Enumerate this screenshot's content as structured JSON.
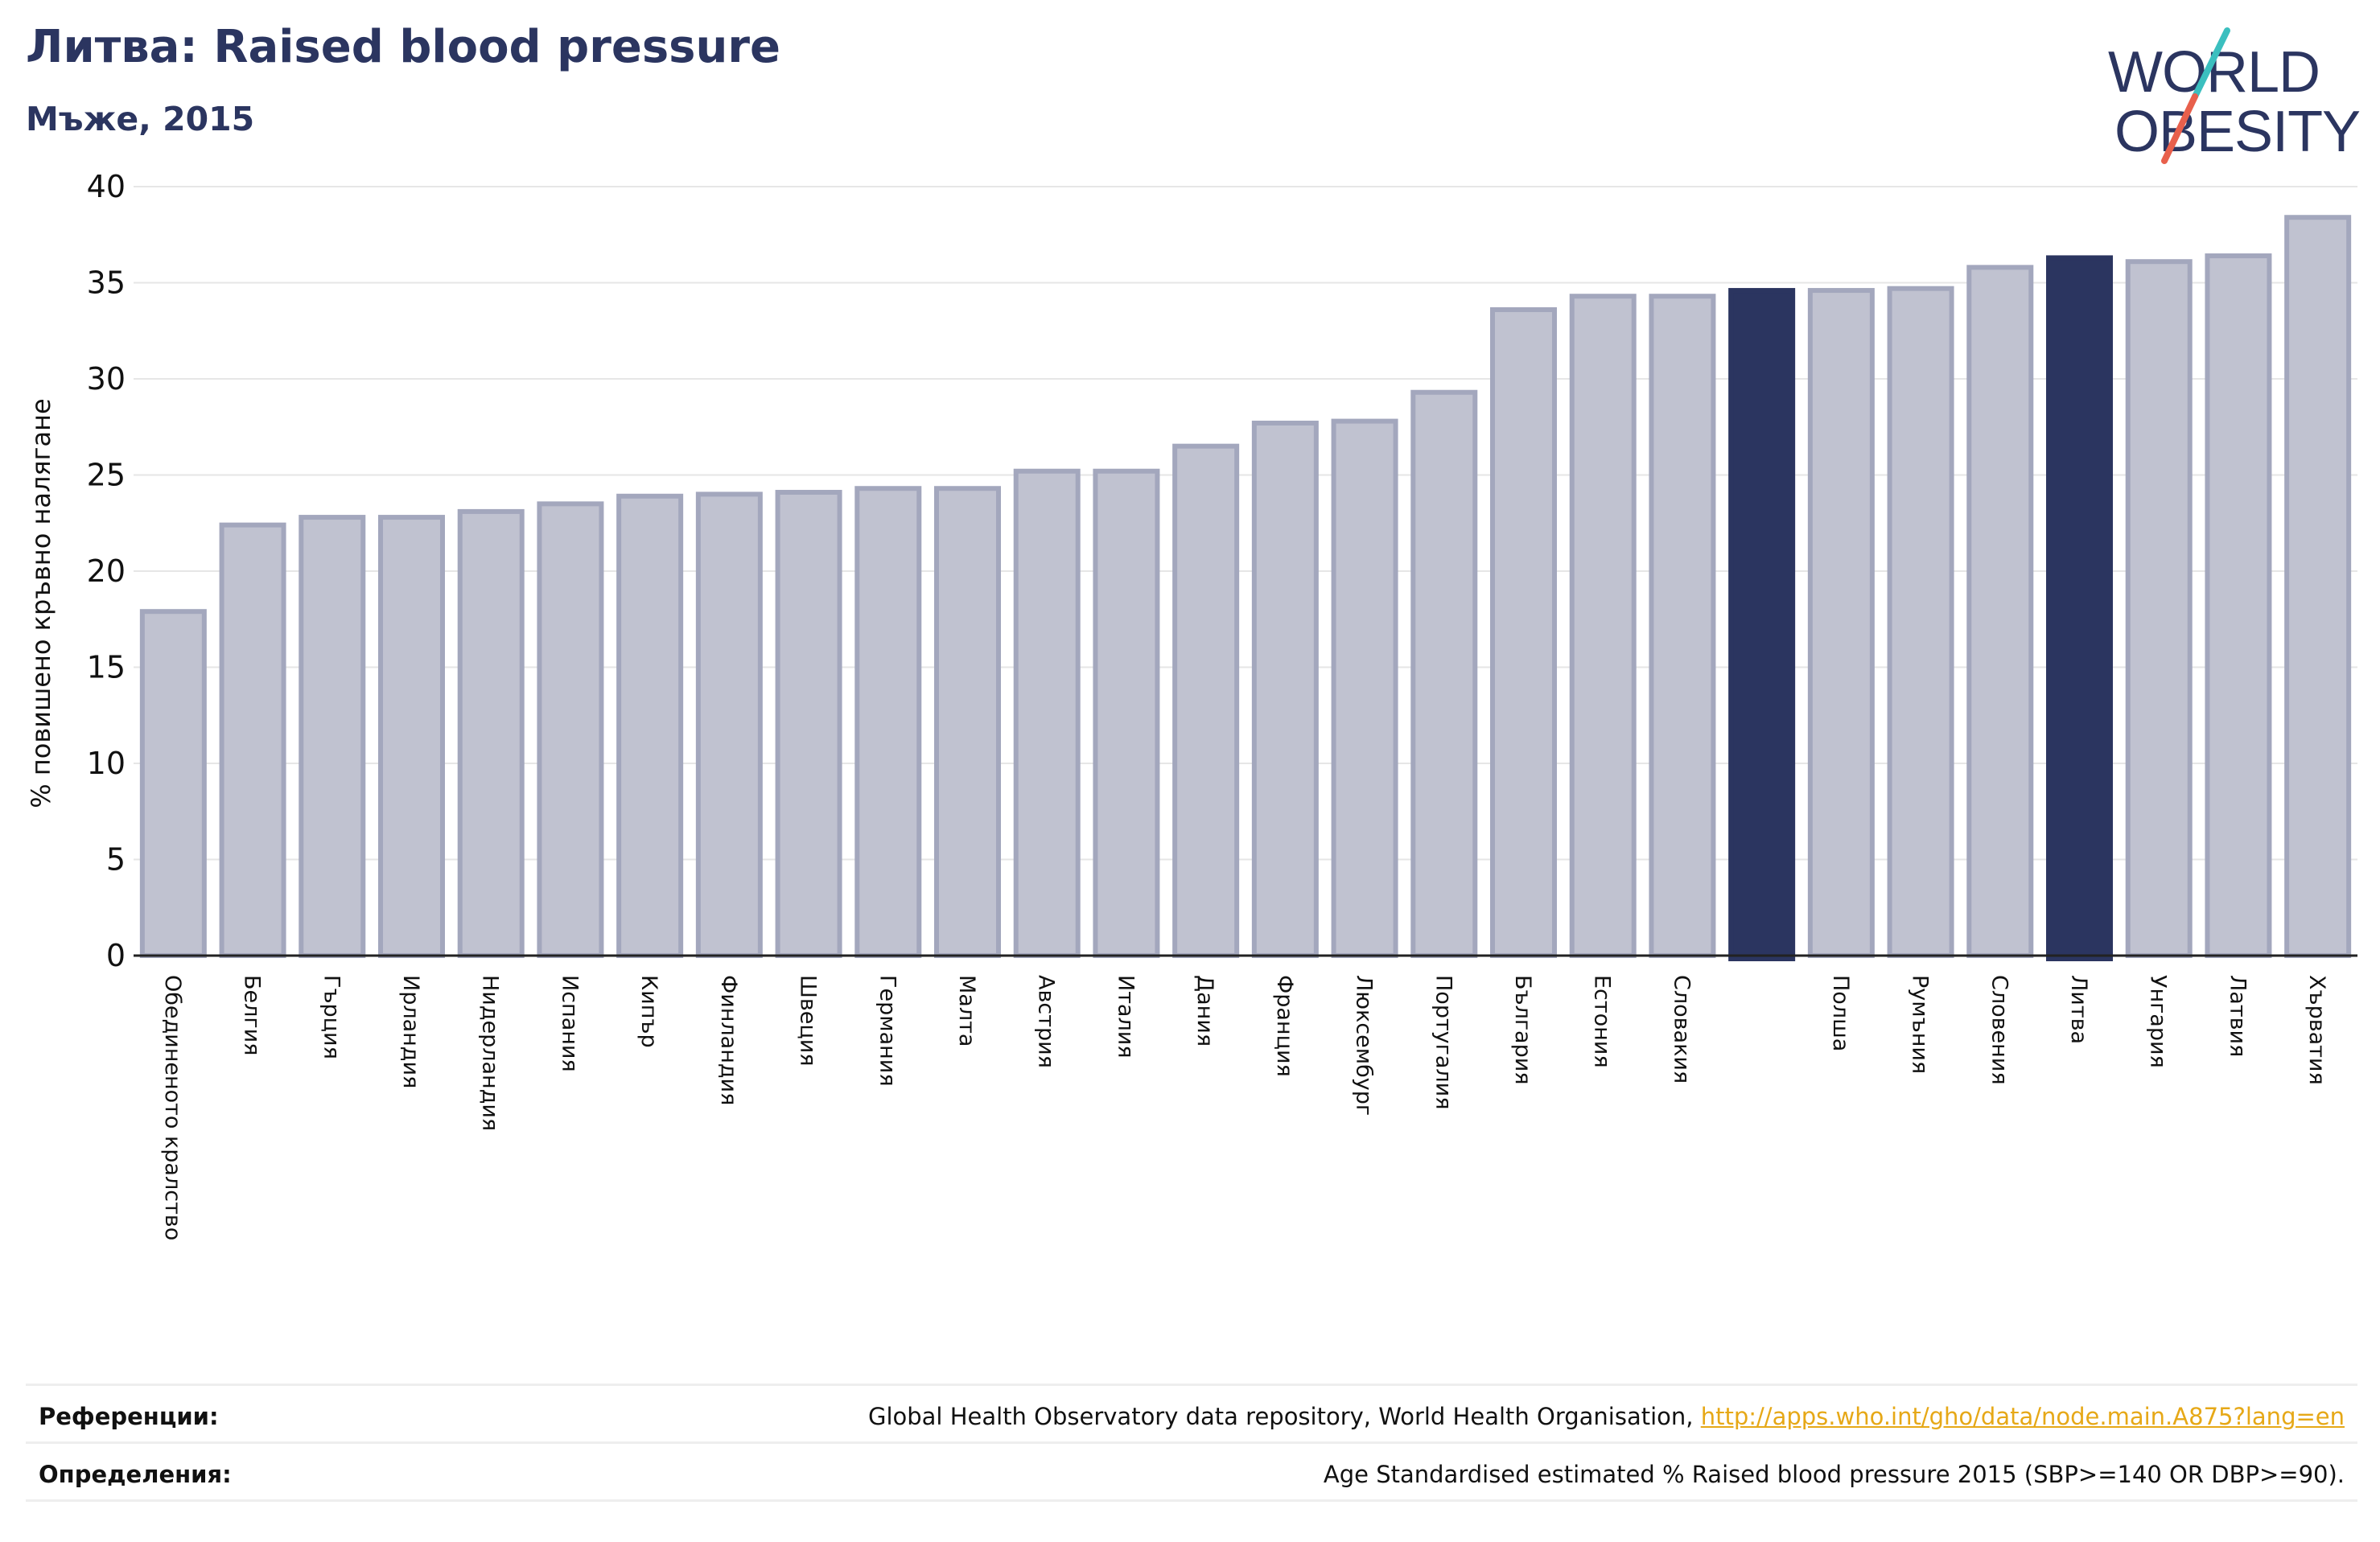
{
  "header": {
    "title": "Литва: Raised blood pressure",
    "subtitle": "Мъже, 2015"
  },
  "logo": {
    "line1": "WORLD",
    "line2": "OBESITY",
    "colors": {
      "text": "#2b3560",
      "slash_top": "#3bbfbf",
      "slash_bottom": "#e8604c"
    }
  },
  "chart_data": {
    "type": "bar",
    "ylabel": "% повишено кръвно налягане",
    "xlabel": "",
    "ylim": [
      0,
      40
    ],
    "yticks": [
      0,
      5,
      10,
      15,
      20,
      25,
      30,
      35,
      40
    ],
    "grid": true,
    "bar_color": "#c0c2d0",
    "bar_edge_color": "#a3a7bd",
    "highlight_color": "#2b3560",
    "categories": [
      "Обединеното кралство",
      "Белгия",
      "Гърция",
      "Ирландия",
      "Нидерландия",
      "Испания",
      "Кипър",
      "Финландия",
      "Швеция",
      "Германия",
      "Малта",
      "Австрия",
      "Италия",
      "Дания",
      "Франция",
      "Люксембург",
      "Португалия",
      "България",
      "Естония",
      "Словакия",
      "",
      "Полша",
      "Румъния",
      "Словения",
      "Литва",
      "Унгария",
      "Латвия",
      "Хърватия"
    ],
    "values": [
      17.9,
      22.4,
      22.8,
      22.8,
      23.1,
      23.5,
      23.9,
      24.0,
      24.1,
      24.3,
      24.3,
      25.2,
      25.2,
      26.5,
      27.7,
      27.8,
      29.3,
      33.6,
      34.3,
      34.3,
      34.6,
      34.6,
      34.7,
      35.8,
      36.3,
      36.1,
      36.4,
      38.4
    ],
    "highlighted": [
      false,
      false,
      false,
      false,
      false,
      false,
      false,
      false,
      false,
      false,
      false,
      false,
      false,
      false,
      false,
      false,
      false,
      false,
      false,
      false,
      true,
      false,
      false,
      false,
      true,
      false,
      false,
      false
    ]
  },
  "footer": {
    "references_label": "Референции:",
    "references_text": "Global Health Observatory data repository, World Health Organisation, ",
    "references_link": "http://apps.who.int/gho/data/node.main.A875?lang=en",
    "definitions_label": "Определения:",
    "definitions_text": "Age Standardised estimated % Raised blood pressure 2015 (SBP>=140 OR DBP>=90)."
  }
}
